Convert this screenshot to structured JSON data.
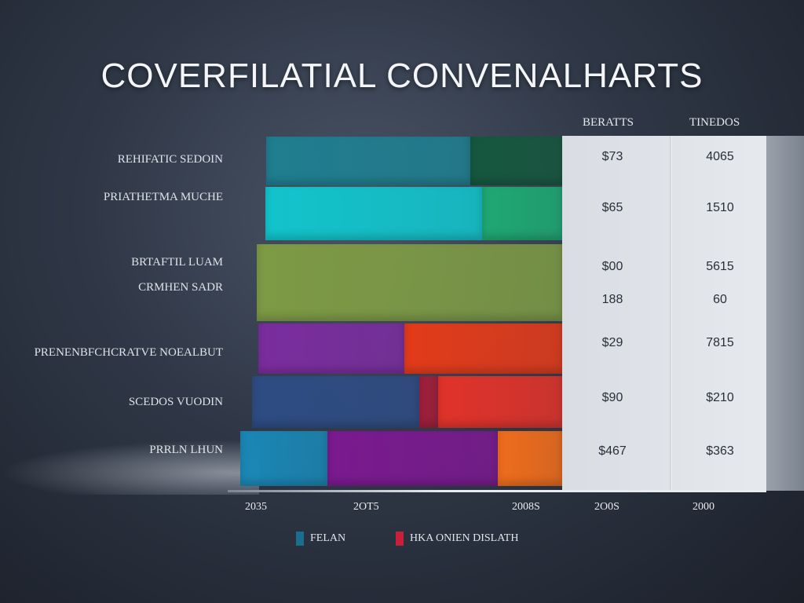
{
  "chart_data": {
    "type": "bar",
    "orientation": "horizontal",
    "stacked": true,
    "title": "COVERFILATIAL CONVENALHARTS",
    "categories": [
      "REHIFATIC SEDOIN",
      "PRIATHETMA MUCHE",
      "BRTAFTIL LUAM CRMHEN SADR",
      "PRENENBFCHCRATVE NOEALBUT",
      "SCEDOS VUODIN",
      "PRRLN LHUN"
    ],
    "segments": [
      [
        {
          "color": "#1f7e8f",
          "share": 0.69
        },
        {
          "color": "#16573f",
          "share": 0.31
        }
      ],
      [
        {
          "color": "#12c4cc",
          "share": 0.73
        },
        {
          "color": "#1ea873",
          "share": 0.27
        }
      ],
      [
        {
          "color": "#7d9a45",
          "share": 1.0
        }
      ],
      [
        {
          "color": "#7a2d9e",
          "share": 0.48
        },
        {
          "color": "#e23b1a",
          "share": 0.52
        }
      ],
      [
        {
          "color": "#2e4c83",
          "share": 0.54
        },
        {
          "color": "#a21e3a",
          "share": 0.06
        },
        {
          "color": "#e0332a",
          "share": 0.4
        }
      ],
      [
        {
          "color": "#1a87b5",
          "share": 0.27
        },
        {
          "color": "#7a1a8f",
          "share": 0.53
        },
        {
          "color": "#ef6d1c",
          "share": 0.2
        }
      ]
    ],
    "x_ticks": [
      "2035",
      "2OT5",
      "2008S"
    ],
    "legend": [
      {
        "name": "FELAN",
        "color": "#1a6f8f"
      },
      {
        "name": "HKA ONIEN DISLATH",
        "color": "#c8203a"
      }
    ],
    "legend_position": "bottom",
    "table": {
      "headers": [
        "BERATTS",
        "TINEDOS"
      ],
      "footer": [
        "2O0S",
        "2000"
      ],
      "rows": [
        [
          "$73",
          "4065"
        ],
        [
          "$65",
          "1510"
        ],
        [
          "$00",
          "5615"
        ],
        [
          "188",
          "60"
        ],
        [
          "$29",
          "7815"
        ],
        [
          "$90",
          "$210"
        ],
        [
          "$467",
          "$363"
        ]
      ]
    }
  }
}
